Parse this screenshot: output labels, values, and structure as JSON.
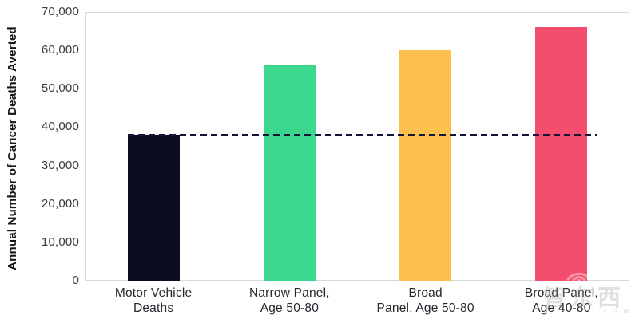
{
  "chart_data": {
    "type": "bar",
    "title": "",
    "xlabel": "",
    "ylabel": "Annual Number of Cancer Deaths Averted",
    "categories": [
      [
        "Motor Vehicle",
        "Deaths"
      ],
      [
        "Narrow Panel,",
        "Age 50-80"
      ],
      [
        "Broad",
        "Panel, Age 50-80"
      ],
      [
        "Broad Panel,",
        "Age 40-80"
      ]
    ],
    "values": [
      38000,
      56000,
      60000,
      66000
    ],
    "bar_colors": [
      "#0b0c20",
      "#3bd78e",
      "#fcc14d",
      "#f54d6e"
    ],
    "ylim": [
      0,
      70000
    ],
    "ytick_step": 10000,
    "ytick_labels": [
      "0",
      "10,000",
      "20,000",
      "30,000",
      "40,000",
      "50,000",
      "60,000",
      "70,000"
    ],
    "grid": false,
    "legend": "none",
    "reference_line": {
      "value": 38000,
      "style": "dashed",
      "color": "#15153a",
      "meaning": "level of Motor Vehicle Deaths bar"
    }
  },
  "watermark": {
    "text": "智东西",
    "subtext": "c o m",
    "icon": "wifi-arc-icon"
  }
}
